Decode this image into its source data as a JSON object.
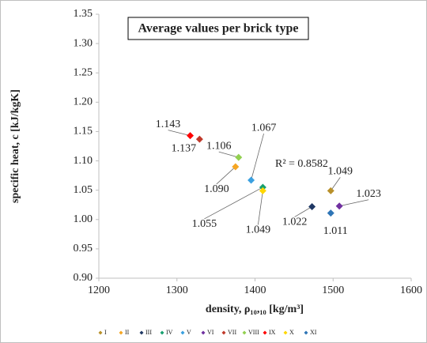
{
  "chart_data": {
    "type": "scatter",
    "title": "Average values per brick type",
    "xlabel": "density, ρ₁₀,₁₀ [kg/m³]",
    "ylabel": "specific heat, c [kJ/kgK]",
    "annotation": "R² = 0.8582",
    "xlim": [
      1200,
      1600
    ],
    "xticks": [
      1200,
      1300,
      1400,
      1500,
      1600
    ],
    "ylim": [
      0.9,
      1.35
    ],
    "yticks": [
      {
        "value": 0.9,
        "label": "0.90"
      },
      0.95,
      {
        "value": 1.0,
        "label": "1.00"
      },
      1.05,
      {
        "value": 1.1,
        "label": "1.10"
      },
      1.15,
      {
        "value": 1.2,
        "label": "1.20"
      },
      1.25,
      {
        "value": 1.3,
        "label": "1.30"
      },
      1.35
    ],
    "grid": false,
    "legend": "bottom",
    "series": [
      {
        "name": "I",
        "color": "#b8902a",
        "x": [
          1497
        ],
        "values": [
          1.049
        ]
      },
      {
        "name": "II",
        "color": "#f5a623",
        "x": [
          1375
        ],
        "values": [
          1.09
        ],
        "value_labels": [
          "1.090"
        ]
      },
      {
        "name": "III",
        "color": "#1f3864",
        "x": [
          1473
        ],
        "values": [
          1.022
        ]
      },
      {
        "name": "IV",
        "color": "#18a070",
        "x": [
          1410
        ],
        "values": [
          1.055
        ]
      },
      {
        "name": "V",
        "color": "#3aa0e0",
        "x": [
          1395
        ],
        "values": [
          1.067
        ]
      },
      {
        "name": "VI",
        "color": "#7030a0",
        "x": [
          1508
        ],
        "values": [
          1.023
        ]
      },
      {
        "name": "VII",
        "color": "#c0392b",
        "x": [
          1329
        ],
        "values": [
          1.137
        ]
      },
      {
        "name": "VIII",
        "color": "#92d050",
        "x": [
          1379
        ],
        "values": [
          1.106
        ]
      },
      {
        "name": "IX",
        "color": "#ff0000",
        "x": [
          1317
        ],
        "values": [
          1.143
        ]
      },
      {
        "name": "X",
        "color": "#ffd700",
        "x": [
          1410
        ],
        "values": [
          1.049
        ]
      },
      {
        "name": "XI",
        "color": "#2e75b6",
        "x": [
          1497
        ],
        "values": [
          1.011
        ]
      }
    ]
  }
}
